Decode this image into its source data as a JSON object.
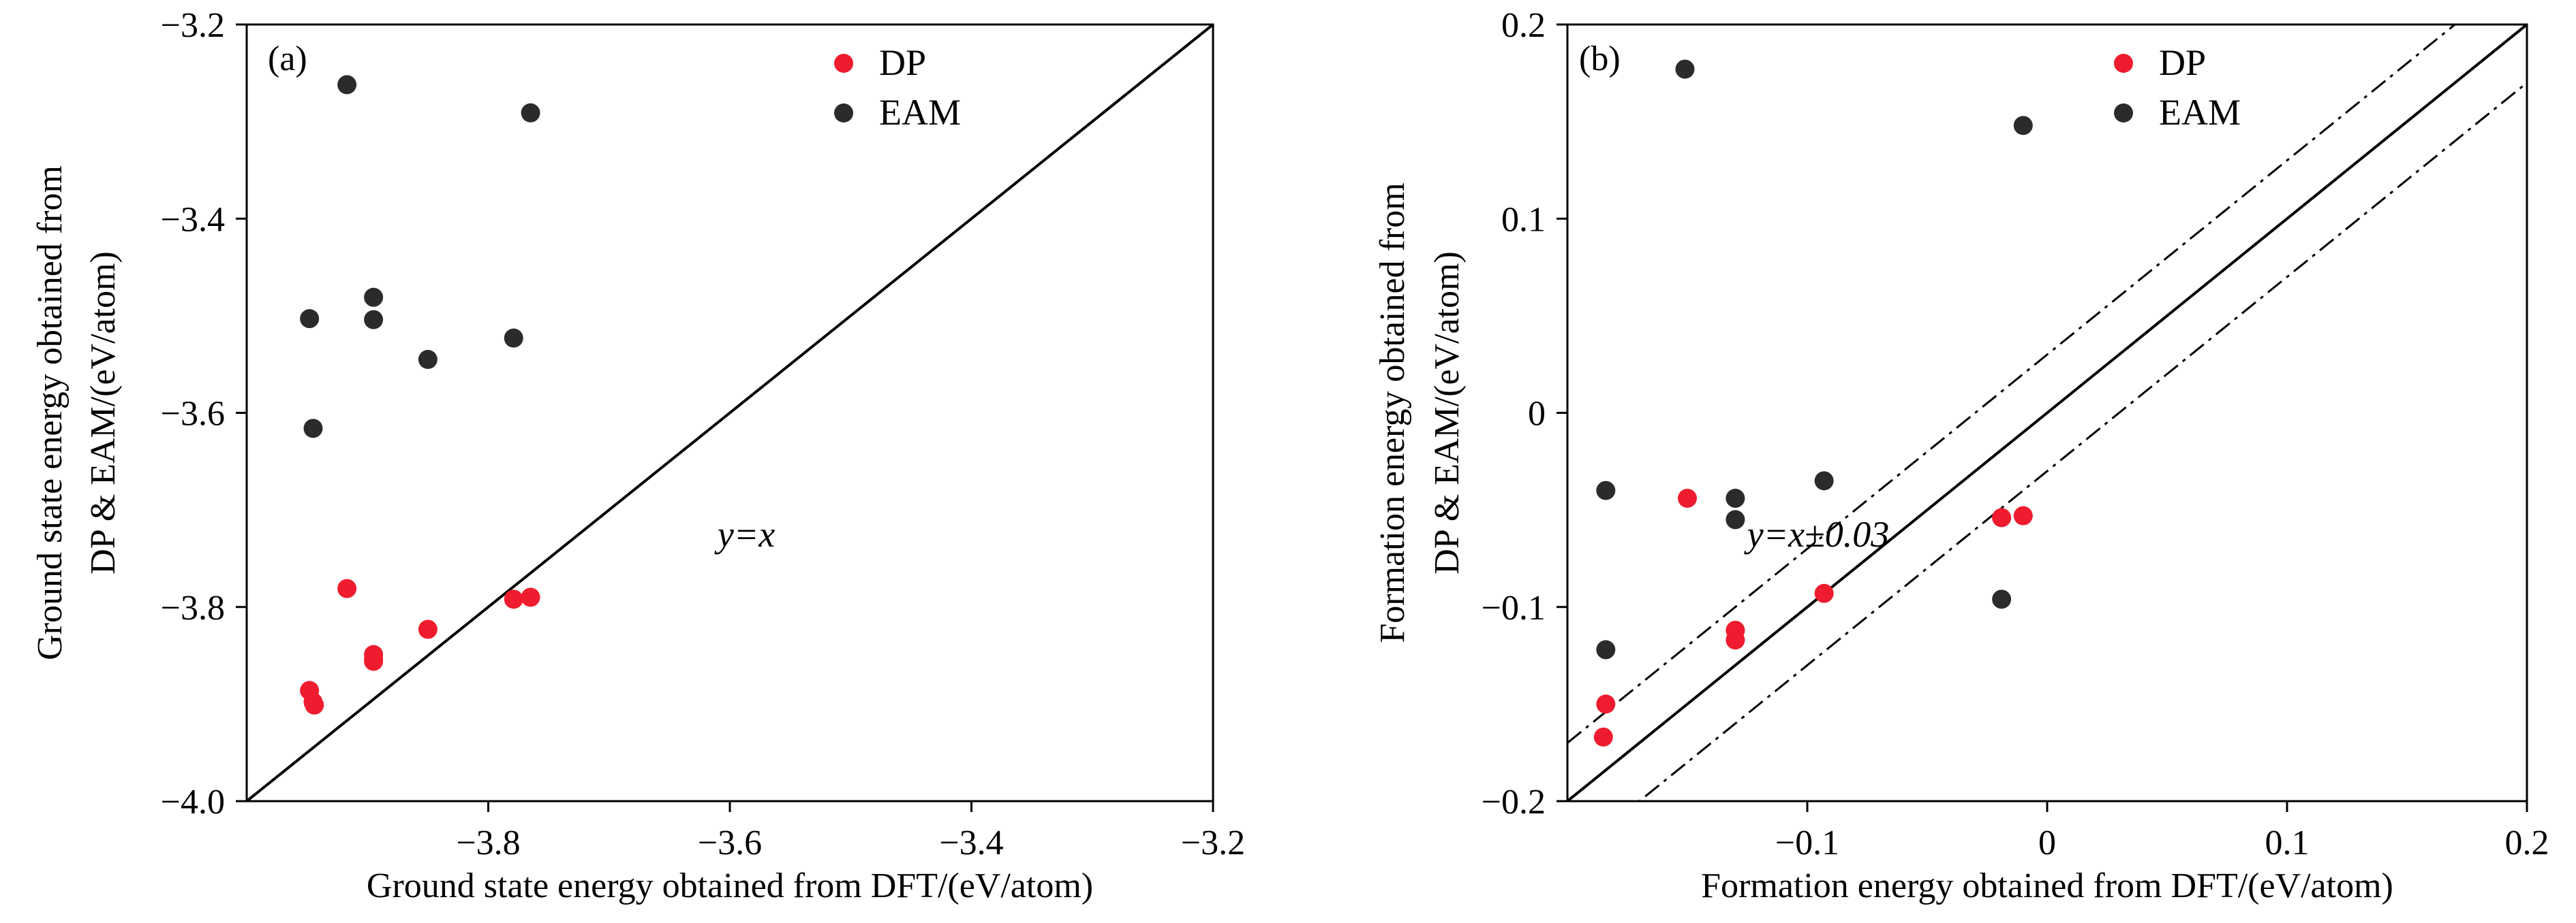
{
  "chart_data": [
    {
      "type": "scatter",
      "panel_label": "(a)",
      "xlabel": "Ground state energy obtained from DFT/(eV/atom)",
      "ylabel_lines": [
        "Ground state energy obtained from",
        "DP & EAM/(eV/atom)"
      ],
      "xlim": [
        -4.0,
        -3.2
      ],
      "ylim": [
        -4.0,
        -3.2
      ],
      "x_ticks": [
        -3.8,
        -3.6,
        -3.4,
        -3.2
      ],
      "x_tick_labels": [
        "−3.8",
        "−3.6",
        "−3.4",
        "−3.2"
      ],
      "y_ticks": [
        -4.0,
        -3.8,
        -3.6,
        -3.4,
        -3.2
      ],
      "y_tick_labels": [
        "−4.0",
        "−3.8",
        "−3.6",
        "−3.4",
        "−3.2"
      ],
      "legend_position": "top-right",
      "annotation": "y=x",
      "reference_lines": [
        {
          "slope": 1,
          "offset": 0,
          "style": "solid"
        }
      ],
      "series": [
        {
          "name": "DP",
          "color": "#ee1c2e",
          "points": [
            [
              -3.948,
              -3.886
            ],
            [
              -3.945,
              -3.898
            ],
            [
              -3.944,
              -3.901
            ],
            [
              -3.917,
              -3.781
            ],
            [
              -3.895,
              -3.849
            ],
            [
              -3.895,
              -3.853
            ],
            [
              -3.895,
              -3.856
            ],
            [
              -3.85,
              -3.823
            ],
            [
              -3.779,
              -3.792
            ],
            [
              -3.765,
              -3.79
            ]
          ]
        },
        {
          "name": "EAM",
          "color": "#2b2b2b",
          "points": [
            [
              -3.917,
              -3.262
            ],
            [
              -3.765,
              -3.291
            ],
            [
              -3.895,
              -3.481
            ],
            [
              -3.895,
              -3.504
            ],
            [
              -3.948,
              -3.503
            ],
            [
              -3.85,
              -3.545
            ],
            [
              -3.779,
              -3.523
            ],
            [
              -3.945,
              -3.616
            ]
          ]
        }
      ]
    },
    {
      "type": "scatter",
      "panel_label": "(b)",
      "xlabel": "Formation energy obtained from DFT/(eV/atom)",
      "ylabel_lines": [
        "Formation energy obtained from",
        "DP & EAM/(eV/atom)"
      ],
      "xlim": [
        -0.2,
        0.2
      ],
      "ylim": [
        -0.2,
        0.2
      ],
      "x_ticks": [
        -0.1,
        0,
        0.1,
        0.2
      ],
      "x_tick_labels": [
        "−0.1",
        "0",
        "0.1",
        "0.2"
      ],
      "y_ticks": [
        -0.2,
        -0.1,
        0,
        0.1,
        0.2
      ],
      "y_tick_labels": [
        "−0.2",
        "−0.1",
        "0",
        "0.1",
        "0.2"
      ],
      "legend_position": "top-right",
      "annotation": "y=x±0.03",
      "reference_lines": [
        {
          "slope": 1,
          "offset": 0,
          "style": "solid"
        },
        {
          "slope": 1,
          "offset": 0.03,
          "style": "dash-dot"
        },
        {
          "slope": 1,
          "offset": -0.03,
          "style": "dash-dot"
        }
      ],
      "series": [
        {
          "name": "DP",
          "color": "#ee1c2e",
          "points": [
            [
              -0.184,
              -0.15
            ],
            [
              -0.185,
              -0.167
            ],
            [
              -0.15,
              -0.044
            ],
            [
              -0.13,
              -0.112
            ],
            [
              -0.13,
              -0.117
            ],
            [
              -0.093,
              -0.093
            ],
            [
              -0.019,
              -0.054
            ],
            [
              -0.01,
              -0.053
            ]
          ]
        },
        {
          "name": "EAM",
          "color": "#2b2b2b",
          "points": [
            [
              -0.151,
              0.177
            ],
            [
              -0.01,
              0.148
            ],
            [
              -0.184,
              -0.04
            ],
            [
              -0.13,
              -0.044
            ],
            [
              -0.13,
              -0.055
            ],
            [
              -0.093,
              -0.035
            ],
            [
              -0.184,
              -0.122
            ],
            [
              -0.019,
              -0.096
            ]
          ]
        }
      ]
    }
  ]
}
